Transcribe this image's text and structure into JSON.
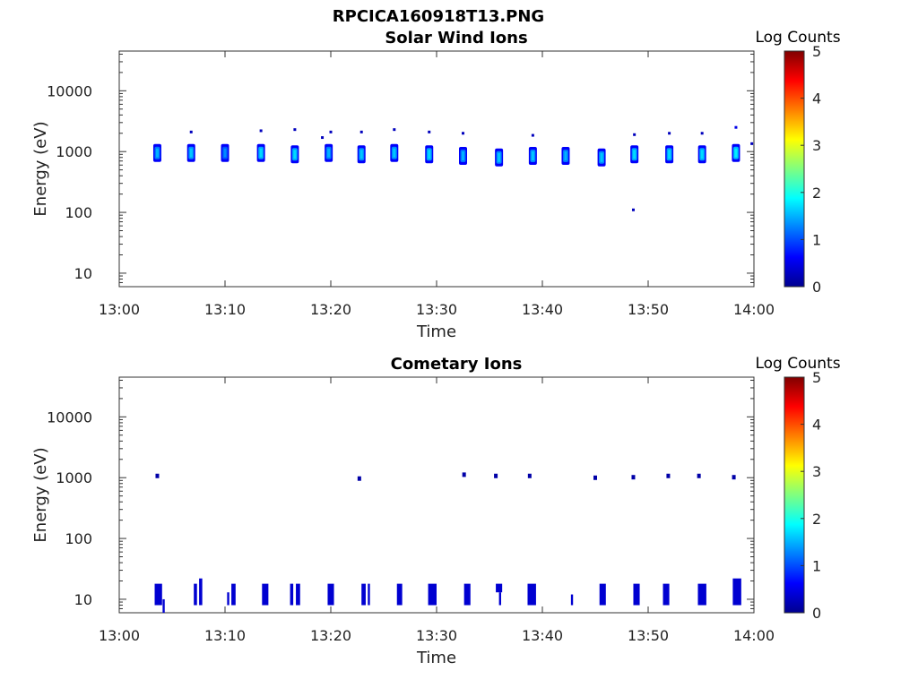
{
  "figure": {
    "title": "RPCICA160918T13.PNG"
  },
  "chart_data": [
    {
      "type": "heatmap",
      "title": "Solar Wind Ions",
      "xlabel": "Time",
      "ylabel": "Energy (eV)",
      "x_ticks": [
        "13:00",
        "13:10",
        "13:20",
        "13:30",
        "13:40",
        "13:50",
        "14:00"
      ],
      "y_ticks": [
        "10",
        "100",
        "1000",
        "10000"
      ],
      "y_tick_values": [
        10,
        100,
        1000,
        10000
      ],
      "y_scale": "log",
      "xlim_minutes": [
        0,
        60
      ],
      "ylim": [
        6,
        45000
      ],
      "colorbar": {
        "label": "Log Counts",
        "ticks": [
          "0",
          "1",
          "2",
          "3",
          "4",
          "5"
        ],
        "range": [
          0,
          5
        ],
        "colormap": "jet"
      },
      "blobs": [
        {
          "t": 3.6,
          "e": 950,
          "v": 1.2
        },
        {
          "t": 6.8,
          "e": 950,
          "v": 1.3
        },
        {
          "t": 10.0,
          "e": 950,
          "v": 1.0
        },
        {
          "t": 13.4,
          "e": 950,
          "v": 1.4
        },
        {
          "t": 16.6,
          "e": 900,
          "v": 1.4
        },
        {
          "t": 19.8,
          "e": 950,
          "v": 1.2
        },
        {
          "t": 22.9,
          "e": 900,
          "v": 1.3
        },
        {
          "t": 26.0,
          "e": 950,
          "v": 1.3
        },
        {
          "t": 29.3,
          "e": 900,
          "v": 1.4
        },
        {
          "t": 32.5,
          "e": 850,
          "v": 1.2
        },
        {
          "t": 35.9,
          "e": 800,
          "v": 1.3
        },
        {
          "t": 39.1,
          "e": 850,
          "v": 1.3
        },
        {
          "t": 42.2,
          "e": 850,
          "v": 1.2
        },
        {
          "t": 45.6,
          "e": 800,
          "v": 1.3
        },
        {
          "t": 48.7,
          "e": 900,
          "v": 1.4
        },
        {
          "t": 52.0,
          "e": 900,
          "v": 1.4
        },
        {
          "t": 55.1,
          "e": 900,
          "v": 1.4
        },
        {
          "t": 58.3,
          "e": 950,
          "v": 1.5
        }
      ],
      "specks": [
        {
          "t": 6.8,
          "e": 2100,
          "v": 0.3
        },
        {
          "t": 13.4,
          "e": 2200,
          "v": 0.3
        },
        {
          "t": 16.6,
          "e": 2300,
          "v": 0.3
        },
        {
          "t": 19.2,
          "e": 1700,
          "v": 0.3
        },
        {
          "t": 20.0,
          "e": 2100,
          "v": 0.3
        },
        {
          "t": 22.9,
          "e": 2100,
          "v": 0.3
        },
        {
          "t": 26.0,
          "e": 2300,
          "v": 0.3
        },
        {
          "t": 29.3,
          "e": 2100,
          "v": 0.3
        },
        {
          "t": 32.5,
          "e": 2000,
          "v": 0.3
        },
        {
          "t": 39.1,
          "e": 1850,
          "v": 0.3
        },
        {
          "t": 48.7,
          "e": 1900,
          "v": 0.3
        },
        {
          "t": 48.6,
          "e": 110,
          "v": 0.3
        },
        {
          "t": 52.0,
          "e": 2000,
          "v": 0.3
        },
        {
          "t": 55.1,
          "e": 2000,
          "v": 0.3
        },
        {
          "t": 58.3,
          "e": 2500,
          "v": 0.5
        },
        {
          "t": 59.8,
          "e": 1350,
          "v": 0.3
        }
      ]
    },
    {
      "type": "heatmap",
      "title": "Cometary Ions",
      "xlabel": "Time",
      "ylabel": "Energy (eV)",
      "x_ticks": [
        "13:00",
        "13:10",
        "13:20",
        "13:30",
        "13:40",
        "13:50",
        "14:00"
      ],
      "y_ticks": [
        "10",
        "100",
        "1000",
        "10000"
      ],
      "y_tick_values": [
        10,
        100,
        1000,
        10000
      ],
      "y_scale": "log",
      "xlim_minutes": [
        0,
        60
      ],
      "ylim": [
        6,
        45000
      ],
      "colorbar": {
        "label": "Log Counts",
        "ticks": [
          "0",
          "1",
          "2",
          "3",
          "4",
          "5"
        ],
        "range": [
          0,
          5
        ],
        "colormap": "jet"
      },
      "high_specks": [
        {
          "t": 3.6,
          "e": 1050,
          "v": 0.2
        },
        {
          "t": 22.7,
          "e": 950,
          "v": 0.2
        },
        {
          "t": 32.6,
          "e": 1100,
          "v": 0.2
        },
        {
          "t": 35.6,
          "e": 1050,
          "v": 0.2
        },
        {
          "t": 38.8,
          "e": 1050,
          "v": 0.2
        },
        {
          "t": 45.0,
          "e": 980,
          "v": 0.2
        },
        {
          "t": 48.6,
          "e": 1000,
          "v": 0.2
        },
        {
          "t": 51.9,
          "e": 1050,
          "v": 0.2
        },
        {
          "t": 54.8,
          "e": 1050,
          "v": 0.2
        },
        {
          "t": 58.1,
          "e": 1000,
          "v": 0.2
        }
      ],
      "low_bars": [
        {
          "t": 3.7,
          "w": 0.7,
          "e_low": 8,
          "e_high": 18
        },
        {
          "t": 4.2,
          "w": 0.2,
          "e_low": 6,
          "e_high": 10
        },
        {
          "t": 7.2,
          "w": 0.3,
          "e_low": 8,
          "e_high": 18
        },
        {
          "t": 7.7,
          "w": 0.3,
          "e_low": 8,
          "e_high": 22
        },
        {
          "t": 10.3,
          "w": 0.2,
          "e_low": 8,
          "e_high": 13
        },
        {
          "t": 10.8,
          "w": 0.4,
          "e_low": 8,
          "e_high": 18
        },
        {
          "t": 13.8,
          "w": 0.6,
          "e_low": 8,
          "e_high": 18
        },
        {
          "t": 16.3,
          "w": 0.3,
          "e_low": 8,
          "e_high": 18
        },
        {
          "t": 16.9,
          "w": 0.4,
          "e_low": 8,
          "e_high": 18
        },
        {
          "t": 20.0,
          "w": 0.6,
          "e_low": 8,
          "e_high": 18
        },
        {
          "t": 23.1,
          "w": 0.4,
          "e_low": 8,
          "e_high": 18
        },
        {
          "t": 23.6,
          "w": 0.2,
          "e_low": 8,
          "e_high": 18
        },
        {
          "t": 26.5,
          "w": 0.5,
          "e_low": 8,
          "e_high": 18
        },
        {
          "t": 29.6,
          "w": 0.8,
          "e_low": 8,
          "e_high": 18
        },
        {
          "t": 32.9,
          "w": 0.6,
          "e_low": 8,
          "e_high": 18
        },
        {
          "t": 35.9,
          "w": 0.6,
          "e_low": 13,
          "e_high": 18
        },
        {
          "t": 36.0,
          "w": 0.2,
          "e_low": 8,
          "e_high": 13
        },
        {
          "t": 39.0,
          "w": 0.8,
          "e_low": 8,
          "e_high": 18
        },
        {
          "t": 42.8,
          "w": 0.2,
          "e_low": 8,
          "e_high": 12
        },
        {
          "t": 45.7,
          "w": 0.6,
          "e_low": 8,
          "e_high": 18
        },
        {
          "t": 48.9,
          "w": 0.6,
          "e_low": 8,
          "e_high": 18
        },
        {
          "t": 51.7,
          "w": 0.6,
          "e_low": 8,
          "e_high": 18
        },
        {
          "t": 55.1,
          "w": 0.8,
          "e_low": 8,
          "e_high": 18
        },
        {
          "t": 58.4,
          "w": 0.8,
          "e_low": 8,
          "e_high": 22
        }
      ]
    }
  ]
}
